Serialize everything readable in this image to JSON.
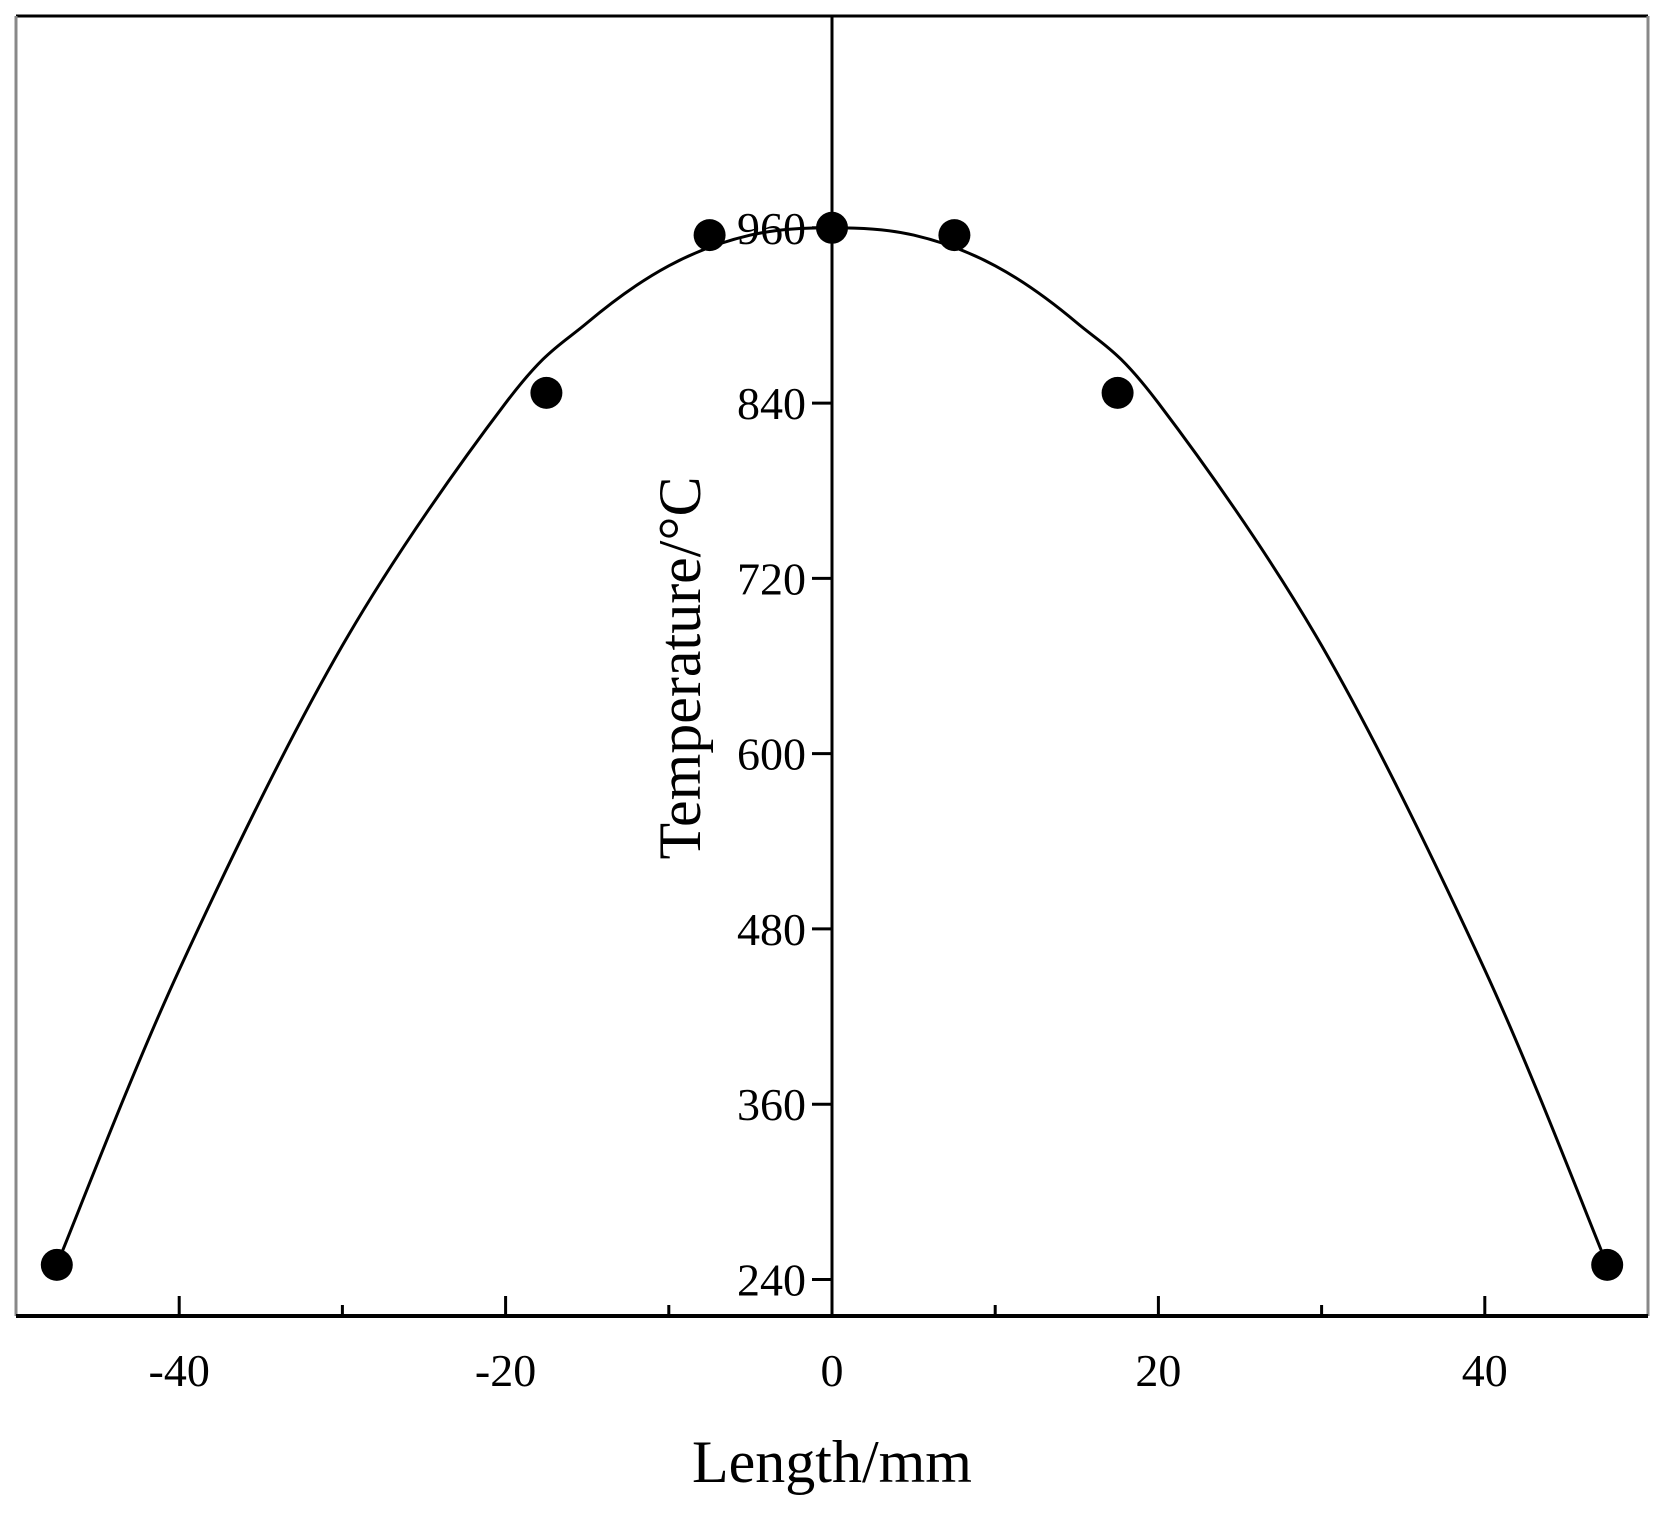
{
  "chart_data": {
    "type": "scatter",
    "title": "",
    "xlabel": "Length/mm",
    "ylabel": "Temperature/°C",
    "xlim": [
      -50,
      50
    ],
    "ylim": [
      215,
      1105
    ],
    "x_ticks": [
      -40,
      -20,
      0,
      20,
      40
    ],
    "y_ticks": [
      240,
      360,
      480,
      600,
      720,
      840,
      960
    ],
    "grid": false,
    "legend": "none",
    "series": [
      {
        "kind": "points",
        "marker": "filled-circle",
        "color": "#000000",
        "x": [
          -47.5,
          -17.5,
          -7.5,
          0,
          7.5,
          17.5,
          47.5
        ],
        "y": [
          250,
          847,
          955,
          960,
          955,
          847,
          250
        ]
      },
      {
        "kind": "fit-curve",
        "color": "#000000",
        "x": [
          -47.5,
          -40,
          -30,
          -20,
          -15,
          -10,
          -5,
          0,
          5,
          10,
          15,
          20,
          30,
          40,
          47.5
        ],
        "y": [
          250,
          452,
          674,
          840,
          895,
          934,
          955,
          960,
          955,
          934,
          895,
          840,
          674,
          452,
          250
        ]
      }
    ]
  }
}
